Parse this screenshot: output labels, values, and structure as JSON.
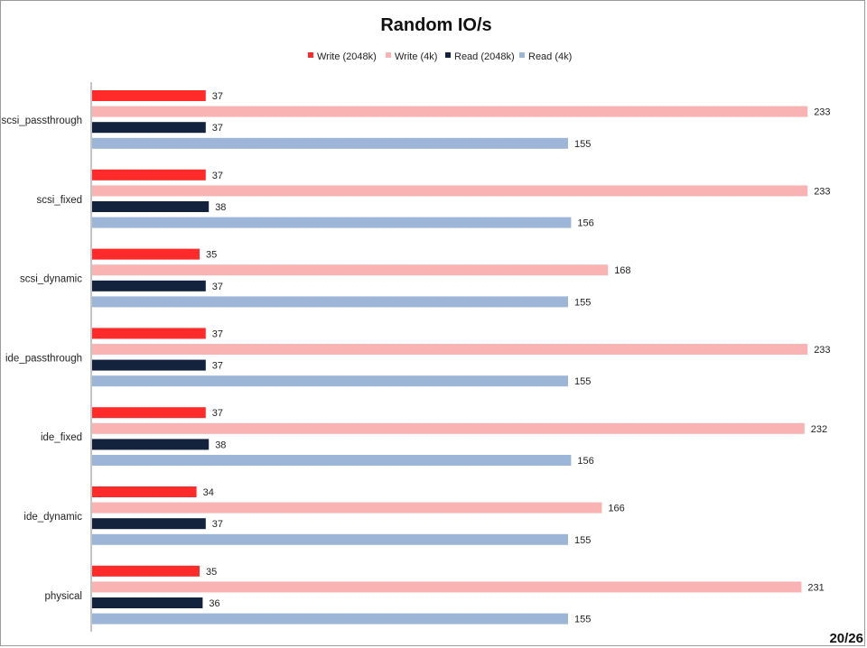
{
  "page_number": "20/26",
  "chart_data": {
    "type": "bar",
    "orientation": "horizontal",
    "title": "Random IO/s",
    "xlabel": "",
    "ylabel": "",
    "xlim": [
      0,
      240
    ],
    "grid": false,
    "legend_position": "top",
    "categories": [
      "scsi_passthrough",
      "scsi_fixed",
      "scsi_dynamic",
      "ide_passthrough",
      "ide_fixed",
      "ide_dynamic",
      "physical"
    ],
    "series": [
      {
        "name": "Write (2048k)",
        "color": "#ff2a2a",
        "values": [
          37,
          37,
          35,
          37,
          37,
          34,
          35
        ]
      },
      {
        "name": "Write (4k)",
        "color": "#f9b3b3",
        "values": [
          233,
          233,
          168,
          233,
          232,
          166,
          231
        ]
      },
      {
        "name": "Read (2048k)",
        "color": "#14233d",
        "values": [
          37,
          38,
          37,
          37,
          38,
          37,
          36
        ]
      },
      {
        "name": "Read (4k)",
        "color": "#9db6d8",
        "values": [
          155,
          156,
          155,
          155,
          156,
          155,
          155
        ]
      }
    ]
  }
}
